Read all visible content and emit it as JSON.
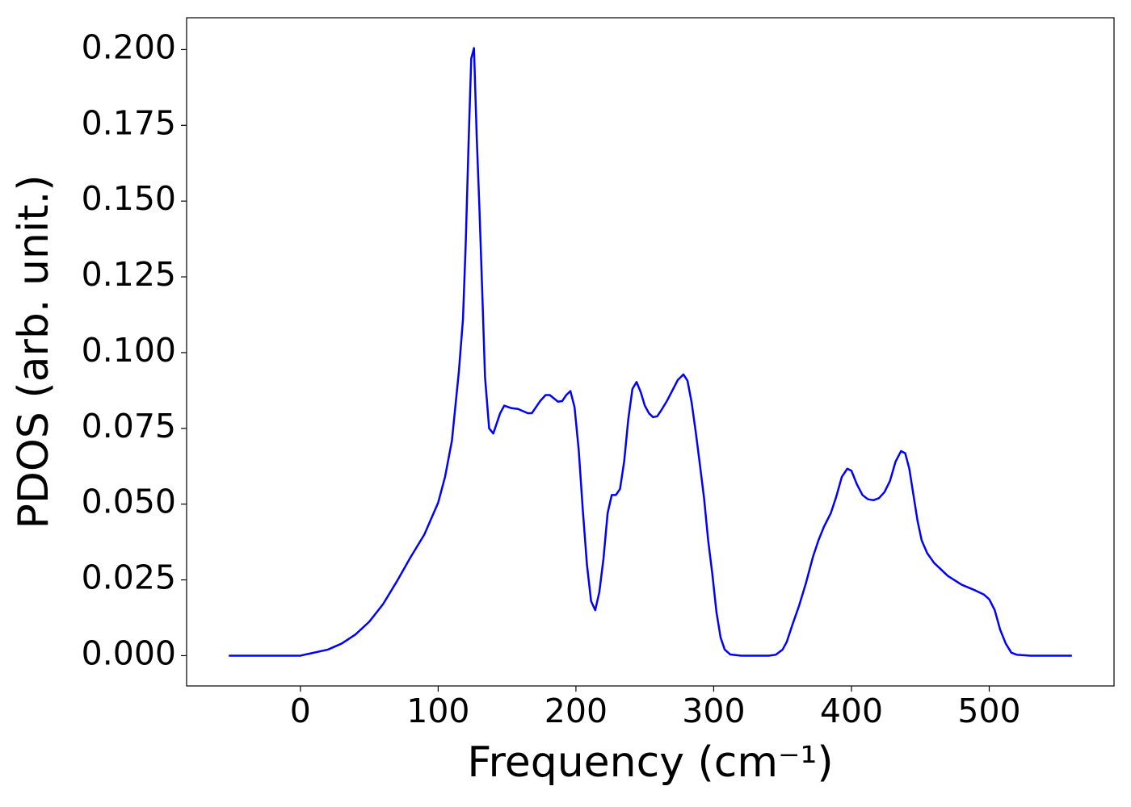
{
  "chart_data": {
    "type": "line",
    "x_label": "Frequency (cm⁻¹)",
    "y_label": "PDOS (arb. unit.)",
    "x": [
      -52,
      0,
      20,
      30,
      40,
      50,
      60,
      70,
      80,
      90,
      100,
      105,
      110,
      115,
      118,
      120,
      122,
      124,
      126,
      128,
      130,
      132,
      134,
      137,
      140,
      145,
      148,
      153,
      158,
      165,
      168,
      174,
      178,
      181,
      187,
      190,
      193,
      196,
      199,
      202,
      205,
      208,
      211,
      214,
      217,
      220,
      223,
      226,
      229,
      232,
      235,
      238,
      241,
      244,
      247,
      250,
      253,
      256,
      259,
      262,
      266,
      270,
      274,
      278,
      281,
      284,
      287,
      290,
      293,
      296,
      299,
      302,
      305,
      308,
      312,
      320,
      340,
      345,
      350,
      353,
      357,
      362,
      367,
      372,
      376,
      380,
      385,
      389,
      393,
      397,
      400,
      404,
      408,
      412,
      416,
      420,
      424,
      428,
      432,
      436,
      439,
      442,
      445,
      448,
      451,
      455,
      460,
      470,
      480,
      490,
      496,
      500,
      504,
      508,
      512,
      516,
      520,
      530,
      560
    ],
    "values": [
      0,
      0,
      0.002,
      0.004,
      0.007,
      0.0112,
      0.017,
      0.0245,
      0.0325,
      0.04,
      0.0505,
      0.059,
      0.071,
      0.0936,
      0.111,
      0.136,
      0.168,
      0.197,
      0.2005,
      0.171,
      0.147,
      0.12,
      0.092,
      0.075,
      0.0733,
      0.08,
      0.0825,
      0.0817,
      0.0814,
      0.08,
      0.08,
      0.084,
      0.086,
      0.086,
      0.0838,
      0.084,
      0.086,
      0.0873,
      0.082,
      0.068,
      0.048,
      0.03,
      0.018,
      0.015,
      0.021,
      0.032,
      0.047,
      0.053,
      0.053,
      0.055,
      0.064,
      0.078,
      0.088,
      0.0903,
      0.087,
      0.0825,
      0.08,
      0.0787,
      0.079,
      0.081,
      0.084,
      0.0875,
      0.091,
      0.0928,
      0.0907,
      0.0835,
      0.0737,
      0.063,
      0.052,
      0.038,
      0.027,
      0.0144,
      0.006,
      0.002,
      0.0004,
      0,
      0,
      0.0003,
      0.002,
      0.0045,
      0.01,
      0.0165,
      0.024,
      0.0325,
      0.038,
      0.0425,
      0.047,
      0.0525,
      0.059,
      0.0617,
      0.061,
      0.0565,
      0.053,
      0.0516,
      0.0513,
      0.052,
      0.054,
      0.0577,
      0.064,
      0.0675,
      0.0668,
      0.0617,
      0.053,
      0.0444,
      0.038,
      0.0338,
      0.0306,
      0.0263,
      0.0234,
      0.0215,
      0.0202,
      0.0186,
      0.015,
      0.0085,
      0.004,
      0.001,
      0.0003,
      0,
      0
    ],
    "color": "#0000ff",
    "xlim": [
      -82.6,
      590.6
    ],
    "ylim": [
      -0.01,
      0.2105
    ],
    "xticks": [
      0,
      100,
      200,
      300,
      400,
      500
    ],
    "yticks": [
      {
        "value": 0,
        "label": "0.000"
      },
      {
        "value": 0.025,
        "label": "0.025"
      },
      {
        "value": 0.05,
        "label": "0.050"
      },
      {
        "value": 0.075,
        "label": "0.075"
      },
      {
        "value": 0.1,
        "label": "0.100"
      },
      {
        "value": 0.125,
        "label": "0.125"
      },
      {
        "value": 0.15,
        "label": "0.150"
      },
      {
        "value": 0.175,
        "label": "0.175"
      },
      {
        "value": 0.2,
        "label": "0.200"
      }
    ],
    "grid": false
  }
}
